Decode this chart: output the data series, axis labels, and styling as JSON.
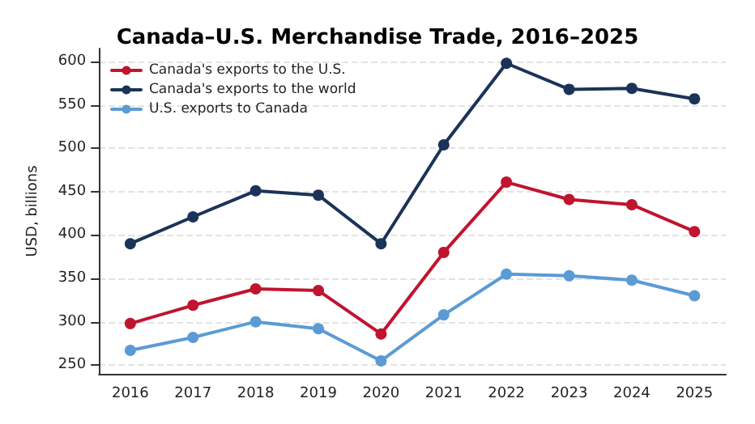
{
  "chart_data": {
    "type": "line",
    "title": "Canada–U.S. Merchandise Trade, 2016–2025",
    "ylabel": "USD, billions",
    "categories": [
      "2016",
      "2017",
      "2018",
      "2019",
      "2020",
      "2021",
      "2022",
      "2023",
      "2024",
      "2025"
    ],
    "series": [
      {
        "name": "Canada's exports to the U.S.",
        "color": "#c0142f",
        "values": [
          298,
          319,
          338,
          336,
          286,
          380,
          461,
          441,
          435,
          404
        ]
      },
      {
        "name": "Canada's exports to the world",
        "color": "#1b3358",
        "values": [
          390,
          421,
          451,
          446,
          390,
          504,
          598,
          568,
          569,
          557
        ]
      },
      {
        "name": "U.S. exports to Canada",
        "color": "#5b9bd5",
        "values": [
          267,
          282,
          300,
          292,
          255,
          308,
          355,
          353,
          348,
          330
        ]
      }
    ],
    "ylim": [
      240,
      615
    ],
    "yticks": [
      250,
      300,
      350,
      400,
      450,
      500,
      550,
      600
    ],
    "grid": "y",
    "legend": "top left",
    "marker": "circle",
    "line_style": "solid"
  }
}
